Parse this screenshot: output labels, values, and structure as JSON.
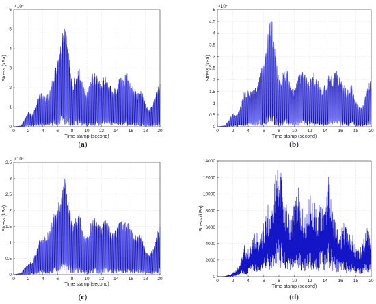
{
  "chart_data": [
    {
      "id": "a",
      "type": "line",
      "caption": "a",
      "xlabel": "Time stamp (second)",
      "ylabel": "Stress (kPa)",
      "multiplier": "×10⁴",
      "xlim": [
        0,
        20
      ],
      "ylim": [
        0,
        6
      ],
      "xticks": [
        0,
        2,
        4,
        6,
        8,
        10,
        12,
        14,
        16,
        18,
        20
      ],
      "yticks": [
        0,
        1,
        2,
        3,
        4,
        5,
        6
      ],
      "ytick_labels": [
        "0",
        "1",
        "2",
        "3",
        "4",
        "5",
        "6"
      ],
      "grid": true,
      "series": [
        {
          "color": "#1515c8",
          "envelope": [
            [
              0,
              0
            ],
            [
              1,
              0.05
            ],
            [
              1.5,
              0.4
            ],
            [
              2,
              0.8
            ],
            [
              2.5,
              0.6
            ],
            [
              3,
              1.1
            ],
            [
              3.5,
              1.8
            ],
            [
              4,
              1.7
            ],
            [
              4.5,
              1.6
            ],
            [
              5,
              1.9
            ],
            [
              5.5,
              2.9
            ],
            [
              6,
              3.4
            ],
            [
              6.5,
              4.6
            ],
            [
              7,
              5.3
            ],
            [
              7.5,
              3.8
            ],
            [
              8,
              2.2
            ],
            [
              8.5,
              2.8
            ],
            [
              9,
              3.0
            ],
            [
              9.5,
              2.1
            ],
            [
              10,
              1.8
            ],
            [
              10.5,
              2.5
            ],
            [
              11,
              2.9
            ],
            [
              11.5,
              2.6
            ],
            [
              12,
              2.2
            ],
            [
              12.5,
              2.8
            ],
            [
              13,
              2.3
            ],
            [
              13.5,
              1.9
            ],
            [
              14,
              2.0
            ],
            [
              14.5,
              2.6
            ],
            [
              15,
              2.5
            ],
            [
              15.5,
              2.8
            ],
            [
              16,
              2.3
            ],
            [
              16.5,
              2.0
            ],
            [
              17,
              1.8
            ],
            [
              17.5,
              2.0
            ],
            [
              18,
              1.2
            ],
            [
              18.5,
              0.9
            ],
            [
              19,
              1.1
            ],
            [
              19.5,
              2.0
            ],
            [
              20,
              2.2
            ]
          ]
        }
      ]
    },
    {
      "id": "b",
      "type": "line",
      "caption": "b",
      "xlabel": "Time stamp (second)",
      "ylabel": "Stress (kPa)",
      "multiplier": "×10⁴",
      "xlim": [
        0,
        20
      ],
      "ylim": [
        0,
        5
      ],
      "xticks": [
        0,
        2,
        4,
        6,
        8,
        10,
        12,
        14,
        16,
        18,
        20
      ],
      "yticks": [
        0,
        0.5,
        1,
        1.5,
        2,
        2.5,
        3,
        3.5,
        4,
        4.5,
        5
      ],
      "ytick_labels": [
        "0",
        "0.5",
        "1",
        "1.5",
        "2",
        "2.5",
        "3",
        "3.5",
        "4",
        "4.5",
        "5"
      ],
      "grid": true,
      "series": [
        {
          "color": "#1515c8",
          "envelope": [
            [
              0,
              0
            ],
            [
              1,
              0.05
            ],
            [
              1.5,
              0.3
            ],
            [
              2,
              0.6
            ],
            [
              2.5,
              0.5
            ],
            [
              3,
              0.9
            ],
            [
              3.5,
              1.5
            ],
            [
              4,
              1.6
            ],
            [
              4.5,
              1.5
            ],
            [
              5,
              1.7
            ],
            [
              5.5,
              2.3
            ],
            [
              6,
              2.8
            ],
            [
              6.5,
              3.8
            ],
            [
              7,
              4.9
            ],
            [
              7.5,
              3.4
            ],
            [
              8,
              2.0
            ],
            [
              8.5,
              2.3
            ],
            [
              9,
              2.5
            ],
            [
              9.5,
              1.9
            ],
            [
              10,
              1.6
            ],
            [
              10.5,
              2.2
            ],
            [
              11,
              2.5
            ],
            [
              11.5,
              2.3
            ],
            [
              12,
              1.9
            ],
            [
              12.5,
              2.4
            ],
            [
              13,
              2.0
            ],
            [
              13.5,
              1.7
            ],
            [
              14,
              1.8
            ],
            [
              14.5,
              2.3
            ],
            [
              15,
              2.2
            ],
            [
              15.5,
              2.4
            ],
            [
              16,
              2.0
            ],
            [
              16.5,
              1.8
            ],
            [
              17,
              1.6
            ],
            [
              17.5,
              1.8
            ],
            [
              18,
              1.1
            ],
            [
              18.5,
              0.8
            ],
            [
              19,
              1.0
            ],
            [
              19.5,
              1.8
            ],
            [
              20,
              2.0
            ]
          ]
        }
      ]
    },
    {
      "id": "c",
      "type": "line",
      "caption": "c",
      "xlabel": "Time stamp (second)",
      "ylabel": "Stress (kPa)",
      "multiplier": "×10⁴",
      "xlim": [
        0,
        20
      ],
      "ylim": [
        0,
        3.5
      ],
      "xticks": [
        0,
        2,
        4,
        6,
        8,
        10,
        12,
        14,
        16,
        18,
        20
      ],
      "yticks": [
        0,
        0.5,
        1,
        1.5,
        2,
        2.5,
        3,
        3.5
      ],
      "ytick_labels": [
        "0",
        "0.5",
        "1",
        "1.5",
        "2",
        "2.5",
        "3",
        "3.5"
      ],
      "grid": true,
      "series": [
        {
          "color": "#1515c8",
          "envelope": [
            [
              0,
              0
            ],
            [
              1,
              0.05
            ],
            [
              1.5,
              0.2
            ],
            [
              2,
              0.35
            ],
            [
              2.5,
              0.4
            ],
            [
              3,
              0.7
            ],
            [
              3.5,
              1.1
            ],
            [
              4,
              1.2
            ],
            [
              4.5,
              1.3
            ],
            [
              5,
              1.5
            ],
            [
              5.5,
              1.9
            ],
            [
              6,
              2.1
            ],
            [
              6.5,
              2.6
            ],
            [
              7,
              3.1
            ],
            [
              7.5,
              2.5
            ],
            [
              8,
              1.6
            ],
            [
              8.5,
              1.8
            ],
            [
              9,
              1.9
            ],
            [
              9.5,
              1.4
            ],
            [
              10,
              1.2
            ],
            [
              10.5,
              1.6
            ],
            [
              11,
              1.8
            ],
            [
              11.5,
              1.6
            ],
            [
              12,
              1.5
            ],
            [
              12.5,
              1.8
            ],
            [
              13,
              1.5
            ],
            [
              13.5,
              1.3
            ],
            [
              14,
              1.4
            ],
            [
              14.5,
              1.7
            ],
            [
              15,
              1.6
            ],
            [
              15.5,
              1.8
            ],
            [
              16,
              1.5
            ],
            [
              16.5,
              1.3
            ],
            [
              17,
              1.2
            ],
            [
              17.5,
              1.3
            ],
            [
              18,
              0.8
            ],
            [
              18.5,
              0.6
            ],
            [
              19,
              0.8
            ],
            [
              19.5,
              1.3
            ],
            [
              20,
              1.5
            ]
          ]
        }
      ]
    },
    {
      "id": "d",
      "type": "line",
      "caption": "d",
      "xlabel": "Time stamp (second)",
      "ylabel": "Stress (kPa)",
      "multiplier": "",
      "xlim": [
        0,
        20
      ],
      "ylim": [
        0,
        14000
      ],
      "xticks": [
        0,
        2,
        4,
        6,
        8,
        10,
        12,
        14,
        16,
        18,
        20
      ],
      "yticks": [
        0,
        2000,
        4000,
        6000,
        8000,
        10000,
        12000,
        14000
      ],
      "ytick_labels": [
        "0",
        "2000",
        "4000",
        "6000",
        "8000",
        "10000",
        "12000",
        "14000"
      ],
      "grid": true,
      "series": [
        {
          "color": "#1515c8",
          "envelope": [
            [
              0,
              0
            ],
            [
              1,
              50
            ],
            [
              1.5,
              250
            ],
            [
              2,
              500
            ],
            [
              2.5,
              900
            ],
            [
              3,
              1800
            ],
            [
              3.5,
              4000
            ],
            [
              4,
              3500
            ],
            [
              4.5,
              4600
            ],
            [
              5,
              5800
            ],
            [
              5.5,
              4900
            ],
            [
              6,
              6600
            ],
            [
              6.5,
              9000
            ],
            [
              7,
              8000
            ],
            [
              7.5,
              12400
            ],
            [
              8,
              13800
            ],
            [
              8.5,
              11500
            ],
            [
              9,
              8700
            ],
            [
              9.5,
              7300
            ],
            [
              10,
              8800
            ],
            [
              10.5,
              11300
            ],
            [
              11,
              8700
            ],
            [
              11.5,
              7000
            ],
            [
              12,
              11000
            ],
            [
              12.5,
              9600
            ],
            [
              13,
              8000
            ],
            [
              13.5,
              10000
            ],
            [
              14,
              8700
            ],
            [
              14.5,
              13500
            ],
            [
              15,
              8200
            ],
            [
              15.5,
              6700
            ],
            [
              16,
              5600
            ],
            [
              16.5,
              6900
            ],
            [
              17,
              5000
            ],
            [
              17.5,
              5500
            ],
            [
              18,
              3800
            ],
            [
              18.5,
              3200
            ],
            [
              19,
              4900
            ],
            [
              19.5,
              6100
            ],
            [
              20,
              4500
            ]
          ]
        }
      ]
    }
  ]
}
